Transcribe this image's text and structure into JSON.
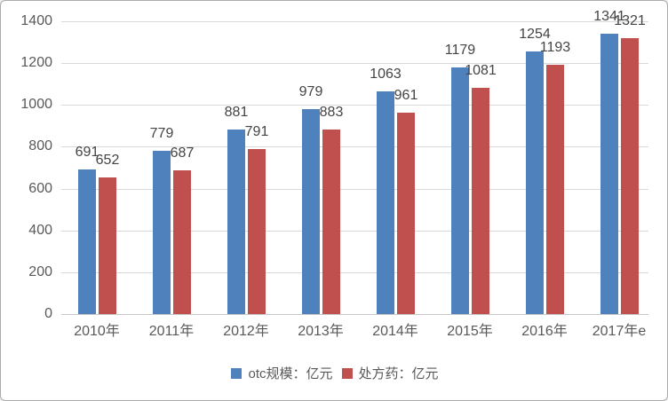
{
  "chart_data": {
    "type": "bar",
    "categories": [
      "2010年",
      "2011年",
      "2012年",
      "2013年",
      "2014年",
      "2015年",
      "2016年",
      "2017年e"
    ],
    "series": [
      {
        "name": "otc规模：亿元",
        "color": "#4F81BD",
        "values": [
          691,
          779,
          881,
          979,
          1063,
          1179,
          1254,
          1341
        ]
      },
      {
        "name": "处方药：亿元",
        "color": "#C0504D",
        "values": [
          652,
          687,
          791,
          883,
          961,
          1081,
          1193,
          1321
        ]
      }
    ],
    "title": "",
    "xlabel": "",
    "ylabel": "",
    "ylim": [
      0,
      1400
    ],
    "yticks": [
      0,
      200,
      400,
      600,
      800,
      1000,
      1200,
      1400
    ],
    "grid": true,
    "legend_position": "bottom",
    "data_labels": true
  },
  "style_colors": {
    "background": "#FFFFFF",
    "border": "#ABABAB",
    "gridline": "#D9D9D9",
    "axis_line": "#C6C6C6",
    "tick_text": "#595959",
    "data_label_text": "#444444"
  }
}
